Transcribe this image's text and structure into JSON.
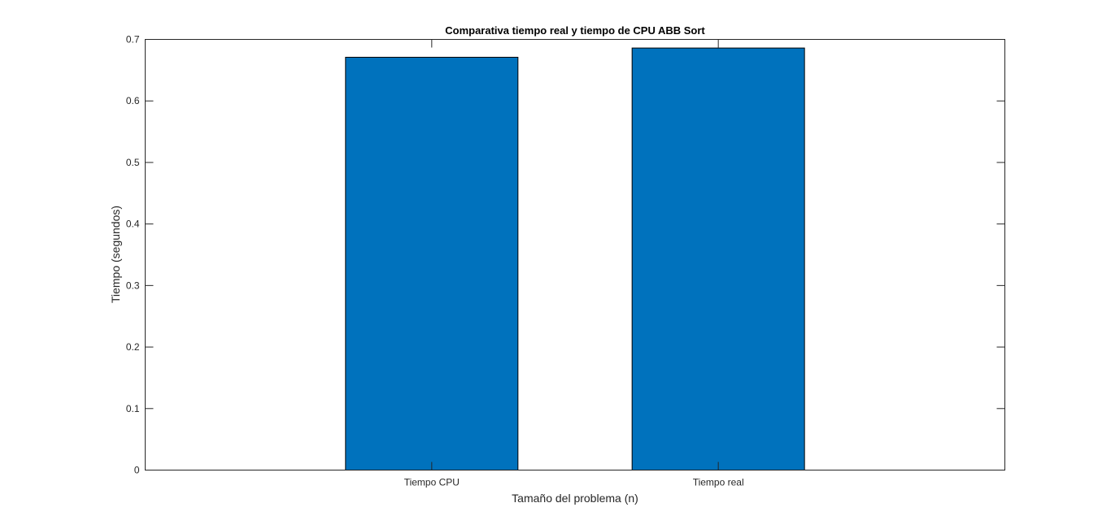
{
  "chart_data": {
    "type": "bar",
    "title": "Comparativa tiempo real y tiempo de CPU ABB Sort",
    "xlabel": "Tamaño del problema (n)",
    "ylabel": "Tiempo (segundos)",
    "categories": [
      "Tiempo CPU",
      "Tiempo real"
    ],
    "values": [
      0.671,
      0.686
    ],
    "ylim": [
      0,
      0.7
    ],
    "yticks": [
      0,
      0.1,
      0.2,
      0.3,
      0.4,
      0.5,
      0.6,
      0.7
    ],
    "ytick_labels": [
      "0",
      "0.1",
      "0.2",
      "0.3",
      "0.4",
      "0.5",
      "0.6",
      "0.7"
    ],
    "grid": false,
    "colors": {
      "bar": "#0072BD",
      "bar_edge": "#000000",
      "axis": "#262626"
    }
  }
}
